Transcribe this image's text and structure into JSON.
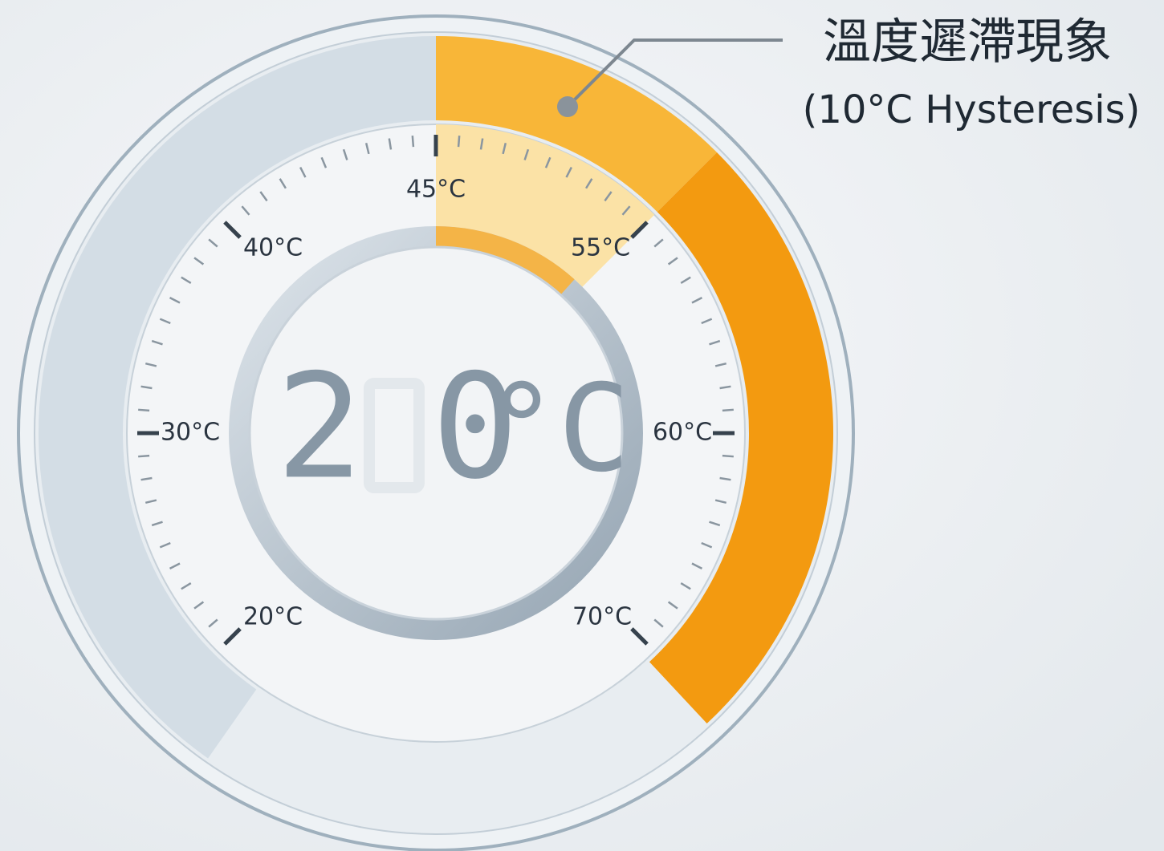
{
  "annotation": {
    "title": "溫度遲滯現象",
    "subtitle": "(10°C Hysteresis)"
  },
  "dial": {
    "labels": [
      "20°C",
      "30°C",
      "40°C",
      "45°C",
      "55°C",
      "60°C",
      "70°C"
    ]
  },
  "display": {
    "tens": "2",
    "ones": "0",
    "unit": "°C"
  }
}
